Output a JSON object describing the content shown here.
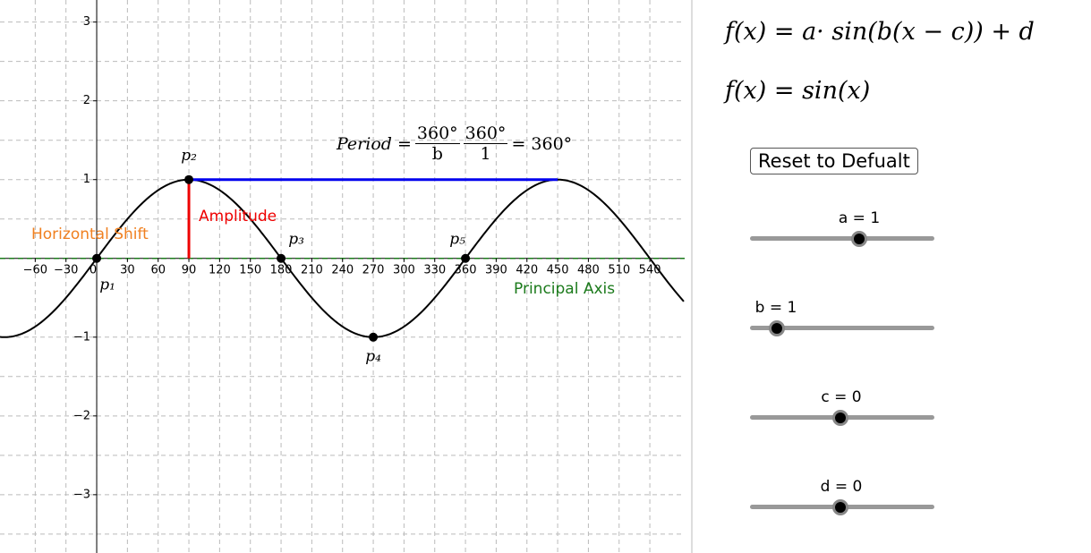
{
  "graph": {
    "xlim": [
      -94.4,
      574
    ],
    "ylim": [
      -3.74,
      3.28
    ],
    "xticks": [
      {
        "value": -60,
        "label": "−60"
      },
      {
        "value": -30,
        "label": "−30"
      },
      0,
      30,
      60,
      90,
      120,
      150,
      180,
      210,
      240,
      270,
      300,
      330,
      360,
      390,
      420,
      450,
      480,
      510,
      540
    ],
    "yticks": [
      {
        "value": -3,
        "label": "−3"
      },
      {
        "value": -2,
        "label": "−2"
      },
      {
        "value": -1,
        "label": "−1"
      },
      1,
      2,
      3
    ],
    "grid": true,
    "points": [
      {
        "label": "p₁",
        "x": 0,
        "y": 0
      },
      {
        "label": "p₂",
        "x": 90,
        "y": 1
      },
      {
        "label": "p₃",
        "x": 180,
        "y": 0
      },
      {
        "label": "p₄",
        "x": 270,
        "y": -1
      },
      {
        "label": "p₅",
        "x": 360,
        "y": 0
      }
    ],
    "period_end": 450,
    "annotations": {
      "horizontal_shift": "Horizontal Shift",
      "amplitude": "Amplitude",
      "principal_axis": "Principal Axis"
    },
    "period": {
      "lhs": "Period =",
      "num1": "360°",
      "den1": "b",
      "num2": "360°",
      "den2": "1",
      "rhs": "= 360°"
    }
  },
  "panel": {
    "formula_general": "f(x) = a· sin(b(x − c)) + d",
    "formula_current": "f(x) = sin(x)",
    "button": "Reset to Defualt",
    "sliders": [
      {
        "label": "a = 1"
      },
      {
        "label": "b = 1"
      },
      {
        "label": "c = 0"
      },
      {
        "label": "d = 0"
      }
    ]
  }
}
